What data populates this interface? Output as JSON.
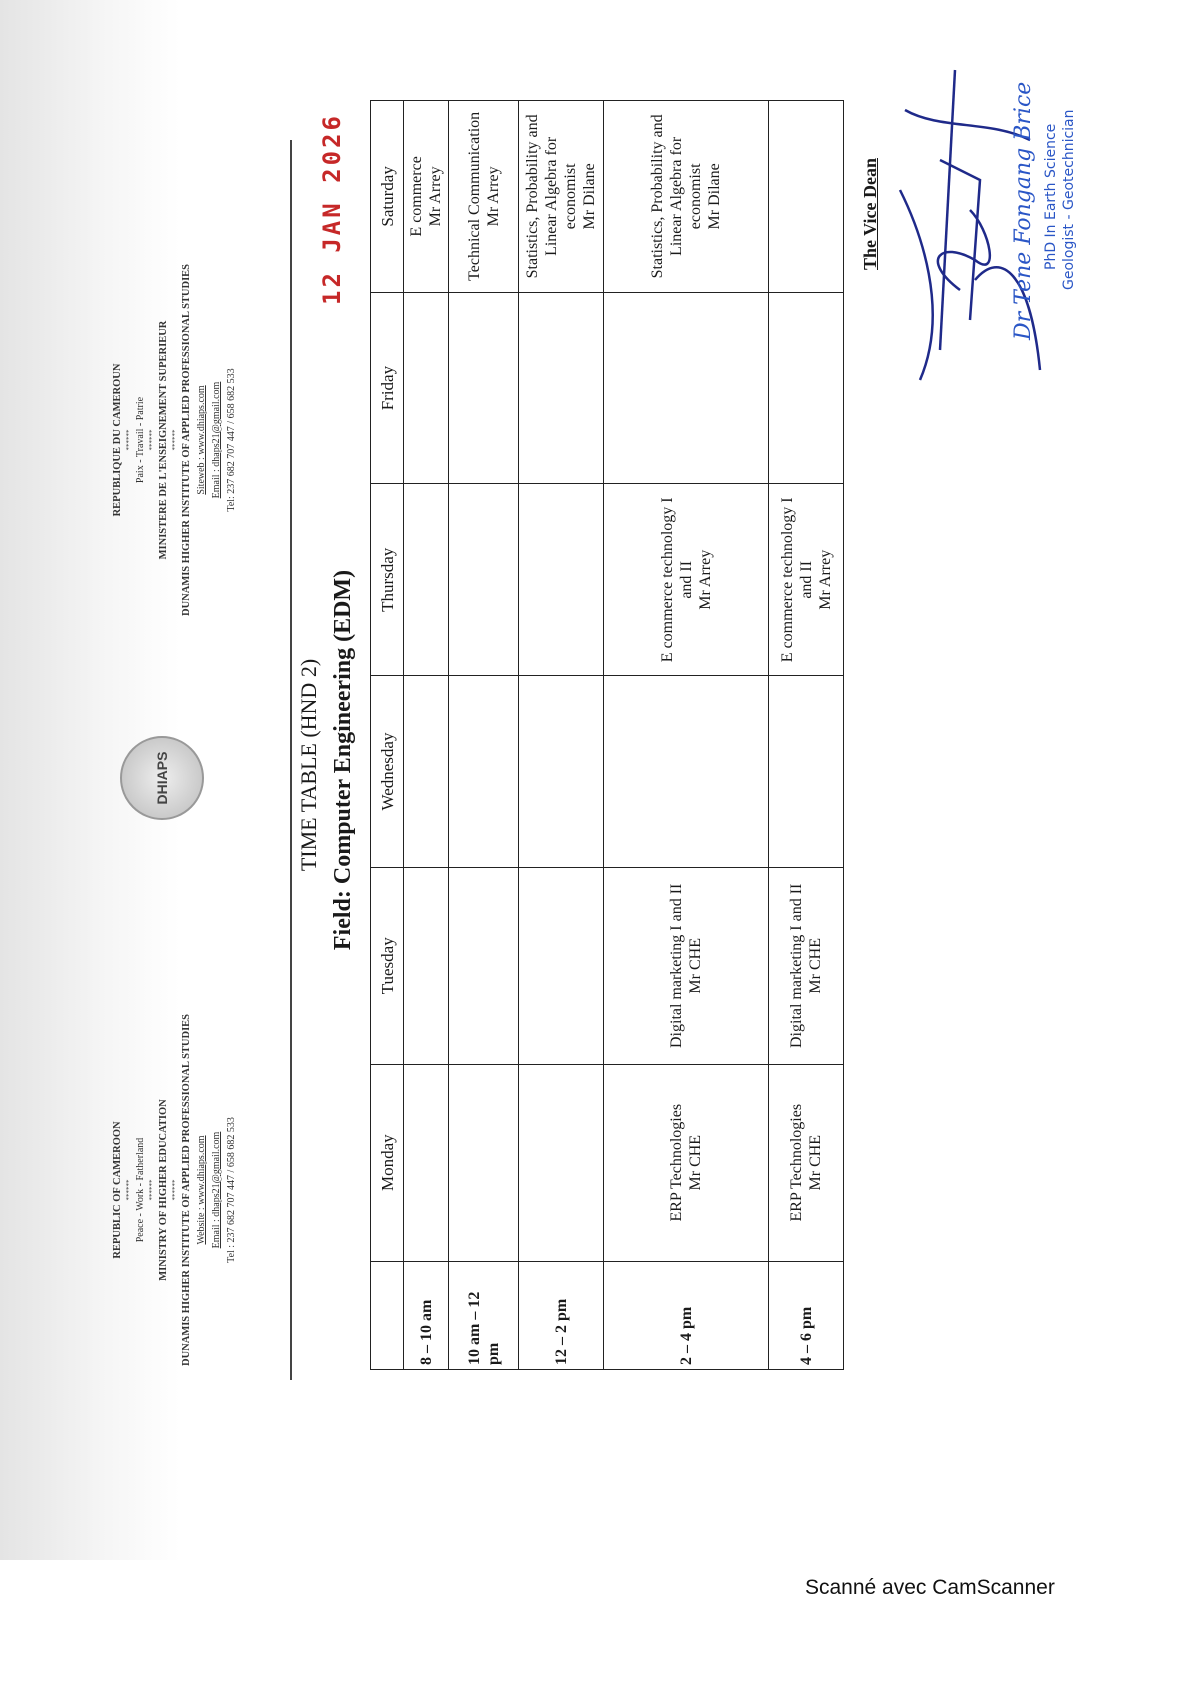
{
  "header_left": {
    "country": "REPUBLIC OF CAMEROON",
    "motto": "Peace - Work - Fatherland",
    "ministry": "MINISTRY OF HIGHER EDUCATION",
    "institute": "DUNAMIS HIGHER INSTITUTE OF APPLIED PROFESSIONAL STUDIES",
    "website": "Website : www.dhiaps.com",
    "email": "Email : dhaps21@gmail.com",
    "tel": "Tel : 237 682 707 447 / 658 682 533",
    "stars": "******"
  },
  "header_right": {
    "country": "REPUBLIQUE DU CAMEROUN",
    "motto": "Paix - Travail - Patrie",
    "ministry": "MINISTERE DE L'ENSEIGNEMENT SUPERIEUR",
    "institute": "DUNAMIS HIGHER INSTITUTE OF APPLIED PROFESSIONAL STUDIES",
    "website": "Siteweb : www.dhiaps.com",
    "email": "Email : dhaps21@gmail.com",
    "tel": "Tel: 237 682 707 447 / 658 682 533",
    "stars": "******"
  },
  "logo_text": "DHIAPS",
  "title": "TIME TABLE (HND 2)",
  "subtitle": "Field: Computer Engineering (EDM)",
  "date_stamp": "12 JAN 2026",
  "table": {
    "headers": [
      "",
      "Monday",
      "Tuesday",
      "Wednesday",
      "Thursday",
      "Friday",
      "Saturday"
    ],
    "rows": [
      {
        "time": "8 – 10 am",
        "cells": [
          "",
          "",
          "",
          "",
          "",
          "E commerce\nMr Arrey"
        ]
      },
      {
        "time": "10 am – 12 pm",
        "cells": [
          "",
          "",
          "",
          "",
          "",
          "Technical Communication\nMr Arrey"
        ]
      },
      {
        "time": "12 – 2 pm",
        "cells": [
          "",
          "",
          "",
          "",
          "",
          "Statistics, Probability and Linear Algebra for economist\nMr Dilane"
        ]
      },
      {
        "time": "2 – 4 pm",
        "cells": [
          "ERP Technologies\nMr CHE",
          "Digital marketing I and II\nMr CHE",
          "",
          "E commerce technology I and II\nMr Arrey",
          "",
          "Statistics, Probability and Linear Algebra for economist\nMr Dilane"
        ]
      },
      {
        "time": "4 – 6 pm",
        "cells": [
          "ERP Technologies\nMr CHE",
          "Digital marketing I and II\nMr CHE",
          "",
          "E commerce technology I and II\nMr Arrey",
          "",
          ""
        ]
      }
    ]
  },
  "signatory": "The Vice Dean",
  "stamp": {
    "name": "Dr Tene Fongang Brice",
    "line1": "PhD In Earth Science",
    "line2": "Geologist - Geotechnician"
  },
  "colors": {
    "date_stamp": "#c62828",
    "ink": "#1f2a8a",
    "stamp": "#2a56c6"
  },
  "watermark": "Scanné avec CamScanner"
}
